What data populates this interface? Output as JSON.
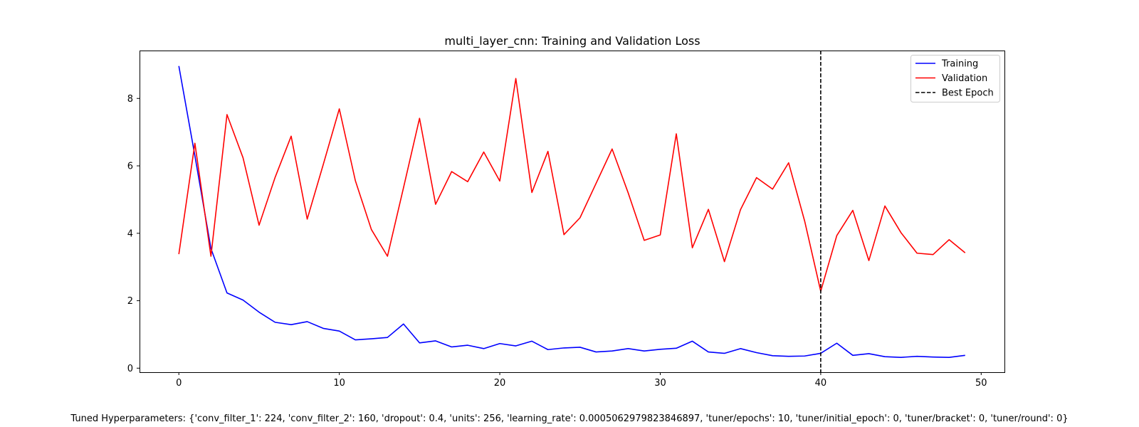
{
  "chart_data": {
    "type": "line",
    "title": "multi_layer_cnn: Training and Validation Loss",
    "xlabel": "",
    "ylabel": "",
    "xlim": [
      -2.45,
      51.45
    ],
    "ylim": [
      -0.12,
      9.42
    ],
    "xticks": [
      0,
      10,
      20,
      30,
      40,
      50
    ],
    "yticks": [
      0,
      2,
      4,
      6,
      8
    ],
    "grid": false,
    "legend_position": "top-right",
    "x": [
      0,
      1,
      2,
      3,
      4,
      5,
      6,
      7,
      8,
      9,
      10,
      11,
      12,
      13,
      14,
      15,
      16,
      17,
      18,
      19,
      20,
      21,
      22,
      23,
      24,
      25,
      26,
      27,
      28,
      29,
      30,
      31,
      32,
      33,
      34,
      35,
      36,
      37,
      38,
      39,
      40,
      41,
      42,
      43,
      44,
      45,
      46,
      47,
      48,
      49
    ],
    "series": [
      {
        "name": "Training",
        "color": "#0000ff",
        "values": [
          8.96,
          6.3,
          3.55,
          2.23,
          2.02,
          1.66,
          1.36,
          1.29,
          1.38,
          1.18,
          1.1,
          0.84,
          0.87,
          0.91,
          1.31,
          0.75,
          0.81,
          0.63,
          0.68,
          0.58,
          0.73,
          0.66,
          0.8,
          0.55,
          0.6,
          0.62,
          0.48,
          0.51,
          0.58,
          0.51,
          0.56,
          0.59,
          0.8,
          0.48,
          0.44,
          0.58,
          0.46,
          0.37,
          0.35,
          0.36,
          0.44,
          0.74,
          0.38,
          0.43,
          0.34,
          0.32,
          0.35,
          0.33,
          0.32,
          0.38
        ]
      },
      {
        "name": "Validation",
        "color": "#ff0000",
        "values": [
          3.38,
          6.67,
          3.32,
          7.52,
          6.24,
          4.24,
          5.66,
          6.88,
          4.42,
          6.04,
          7.69,
          5.56,
          4.11,
          3.32,
          5.35,
          7.41,
          4.86,
          5.83,
          5.53,
          6.41,
          5.55,
          8.59,
          5.21,
          6.43,
          3.96,
          4.46,
          5.48,
          6.5,
          5.2,
          3.79,
          3.95,
          6.95,
          3.57,
          4.71,
          3.16,
          4.7,
          5.65,
          5.31,
          6.09,
          4.36,
          2.28,
          3.93,
          4.68,
          3.19,
          4.81,
          4.02,
          3.41,
          3.37,
          3.81,
          3.42
        ]
      }
    ],
    "best_epoch": {
      "name": "Best Epoch",
      "x": 40,
      "color": "#000000"
    }
  },
  "footer": {
    "text": "Tuned Hyperparameters: {'conv_filter_1': 224, 'conv_filter_2': 160, 'dropout': 0.4, 'units': 256, 'learning_rate': 0.0005062979823846897, 'tuner/epochs': 10, 'tuner/initial_epoch': 0, 'tuner/bracket': 0, 'tuner/round': 0}"
  }
}
